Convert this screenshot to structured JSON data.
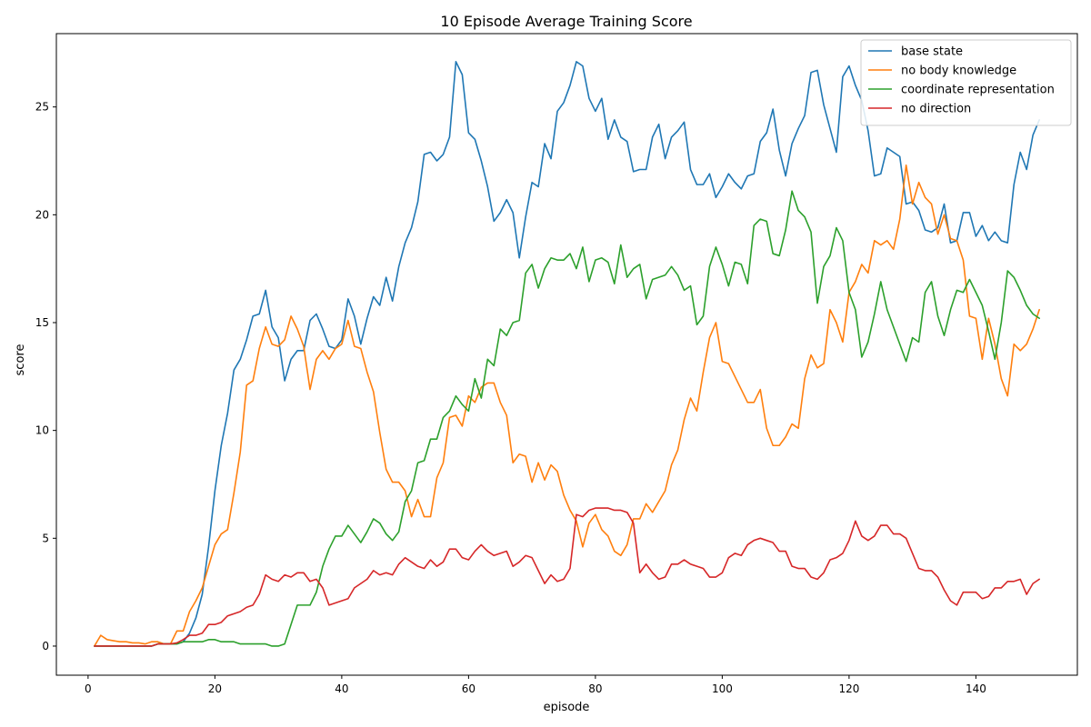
{
  "chart_data": {
    "type": "line",
    "title": "10 Episode Average Training Score",
    "xlabel": "episode",
    "ylabel": "score",
    "xlim": [
      -5,
      156
    ],
    "ylim": [
      -1.35,
      28.4
    ],
    "xticks": [
      0,
      20,
      40,
      60,
      80,
      100,
      120,
      140
    ],
    "yticks": [
      0,
      5,
      10,
      15,
      20,
      25
    ],
    "grid": false,
    "legend_position": "top-right",
    "x": [
      1,
      2,
      3,
      4,
      5,
      6,
      7,
      8,
      9,
      10,
      11,
      12,
      13,
      14,
      15,
      16,
      17,
      18,
      19,
      20,
      21,
      22,
      23,
      24,
      25,
      26,
      27,
      28,
      29,
      30,
      31,
      32,
      33,
      34,
      35,
      36,
      37,
      38,
      39,
      40,
      41,
      42,
      43,
      44,
      45,
      46,
      47,
      48,
      49,
      50,
      51,
      52,
      53,
      54,
      55,
      56,
      57,
      58,
      59,
      60,
      61,
      62,
      63,
      64,
      65,
      66,
      67,
      68,
      69,
      70,
      71,
      72,
      73,
      74,
      75,
      76,
      77,
      78,
      79,
      80,
      81,
      82,
      83,
      84,
      85,
      86,
      87,
      88,
      89,
      90,
      91,
      92,
      93,
      94,
      95,
      96,
      97,
      98,
      99,
      100,
      101,
      102,
      103,
      104,
      105,
      106,
      107,
      108,
      109,
      110,
      111,
      112,
      113,
      114,
      115,
      116,
      117,
      118,
      119,
      120,
      121,
      122,
      123,
      124,
      125,
      126,
      127,
      128,
      129,
      130,
      131,
      132,
      133,
      134,
      135,
      136,
      137,
      138,
      139,
      140,
      141,
      142,
      143,
      144,
      145,
      146,
      147,
      148,
      149,
      150
    ],
    "series": [
      {
        "name": "base state",
        "color": "#1f77b4",
        "values": [
          0,
          0,
          0,
          0,
          0,
          0,
          0,
          0,
          0,
          0,
          0.1,
          0.1,
          0.1,
          0.1,
          0.2,
          0.6,
          1.3,
          2.4,
          4.6,
          7.2,
          9.3,
          10.8,
          12.8,
          13.3,
          14.2,
          15.3,
          15.4,
          16.5,
          14.8,
          14.3,
          12.3,
          13.3,
          13.7,
          13.7,
          15.1,
          15.4,
          14.7,
          13.9,
          13.8,
          14.2,
          16.1,
          15.3,
          14.0,
          15.2,
          16.2,
          15.8,
          17.1,
          16.0,
          17.6,
          18.7,
          19.4,
          20.6,
          22.8,
          22.9,
          22.5,
          22.8,
          23.6,
          27.1,
          26.5,
          23.8,
          23.5,
          22.5,
          21.3,
          19.7,
          20.1,
          20.7,
          20.1,
          18.0,
          19.9,
          21.5,
          21.3,
          23.3,
          22.6,
          24.8,
          25.2,
          26.0,
          27.1,
          26.9,
          25.4,
          24.8,
          25.4,
          23.5,
          24.4,
          23.6,
          23.4,
          22.0,
          22.1,
          22.1,
          23.6,
          24.2,
          22.6,
          23.6,
          23.9,
          24.3,
          22.1,
          21.4,
          21.4,
          21.9,
          20.8,
          21.3,
          21.9,
          21.5,
          21.2,
          21.8,
          21.9,
          23.4,
          23.8,
          24.9,
          23.0,
          21.8,
          23.3,
          24.0,
          24.6,
          26.6,
          26.7,
          25.1,
          24.0,
          22.9,
          26.4,
          26.9,
          26.0,
          25.3,
          23.9,
          21.8,
          21.9,
          23.1,
          22.9,
          22.7,
          20.5,
          20.6,
          20.2,
          19.3,
          19.2,
          19.4,
          20.5,
          18.7,
          18.8,
          20.1,
          20.1,
          19.0,
          19.5,
          18.8,
          19.2,
          18.8,
          18.7,
          21.4,
          22.9,
          22.1,
          23.7,
          24.4
        ]
      },
      {
        "name": "no body knowledge",
        "color": "#ff7f0e",
        "values": [
          0,
          0.5,
          0.3,
          0.25,
          0.2,
          0.2,
          0.15,
          0.15,
          0.1,
          0.2,
          0.2,
          0.1,
          0.1,
          0.7,
          0.7,
          1.6,
          2.1,
          2.7,
          3.7,
          4.7,
          5.2,
          5.4,
          7.1,
          9.0,
          12.1,
          12.3,
          13.8,
          14.8,
          14.0,
          13.9,
          14.2,
          15.3,
          14.7,
          13.9,
          11.9,
          13.3,
          13.7,
          13.3,
          13.8,
          14.0,
          15.1,
          13.9,
          13.8,
          12.7,
          11.8,
          9.9,
          8.2,
          7.6,
          7.6,
          7.2,
          6.0,
          6.8,
          6.0,
          6.0,
          7.8,
          8.5,
          10.6,
          10.7,
          10.2,
          11.6,
          11.3,
          12.0,
          12.2,
          12.2,
          11.3,
          10.7,
          8.5,
          8.9,
          8.8,
          7.6,
          8.5,
          7.7,
          8.4,
          8.1,
          7.0,
          6.3,
          5.8,
          4.6,
          5.7,
          6.1,
          5.4,
          5.1,
          4.4,
          4.2,
          4.7,
          5.9,
          5.9,
          6.6,
          6.2,
          6.7,
          7.2,
          8.4,
          9.1,
          10.5,
          11.5,
          10.9,
          12.7,
          14.3,
          15.0,
          13.2,
          13.1,
          12.5,
          11.9,
          11.3,
          11.3,
          11.9,
          10.1,
          9.3,
          9.3,
          9.7,
          10.3,
          10.1,
          12.4,
          13.5,
          12.9,
          13.1,
          15.6,
          15.0,
          14.1,
          16.4,
          16.9,
          17.7,
          17.3,
          18.8,
          18.6,
          18.8,
          18.4,
          19.8,
          22.3,
          20.5,
          21.5,
          20.8,
          20.5,
          19.1,
          20.0,
          18.9,
          18.8,
          17.9,
          15.3,
          15.2,
          13.3,
          15.2,
          14.0,
          12.4,
          11.6,
          14.0,
          13.7,
          14.0,
          14.7,
          15.6
        ]
      },
      {
        "name": "coordinate representation",
        "color": "#2ca02c",
        "values": [
          0,
          0,
          0,
          0,
          0,
          0,
          0,
          0,
          0,
          0,
          0.1,
          0.1,
          0.1,
          0.1,
          0.2,
          0.2,
          0.2,
          0.2,
          0.3,
          0.3,
          0.2,
          0.2,
          0.2,
          0.1,
          0.1,
          0.1,
          0.1,
          0.1,
          0,
          0,
          0.1,
          1.0,
          1.9,
          1.9,
          1.9,
          2.5,
          3.7,
          4.5,
          5.1,
          5.1,
          5.6,
          5.2,
          4.8,
          5.3,
          5.9,
          5.7,
          5.2,
          4.9,
          5.3,
          6.7,
          7.2,
          8.5,
          8.6,
          9.6,
          9.6,
          10.6,
          10.9,
          11.6,
          11.2,
          10.9,
          12.4,
          11.5,
          13.3,
          13.0,
          14.7,
          14.4,
          15.0,
          15.1,
          17.3,
          17.7,
          16.6,
          17.5,
          18.0,
          17.9,
          17.9,
          18.2,
          17.5,
          18.5,
          16.9,
          17.9,
          18.0,
          17.8,
          16.8,
          18.6,
          17.1,
          17.5,
          17.7,
          16.1,
          17.0,
          17.1,
          17.2,
          17.6,
          17.2,
          16.5,
          16.7,
          14.9,
          15.3,
          17.6,
          18.5,
          17.7,
          16.7,
          17.8,
          17.7,
          16.8,
          19.5,
          19.8,
          19.7,
          18.2,
          18.1,
          19.3,
          21.1,
          20.2,
          19.9,
          19.2,
          15.9,
          17.6,
          18.1,
          19.4,
          18.8,
          16.4,
          15.6,
          13.4,
          14.1,
          15.4,
          16.9,
          15.6,
          14.8,
          14.0,
          13.2,
          14.3,
          14.1,
          16.4,
          16.9,
          15.3,
          14.4,
          15.6,
          16.5,
          16.4,
          17.0,
          16.4,
          15.8,
          14.6,
          13.3,
          15.0,
          17.4,
          17.1,
          16.5,
          15.8,
          15.4,
          15.2
        ]
      },
      {
        "name": "no direction",
        "color": "#d62728",
        "values": [
          0,
          0,
          0,
          0,
          0,
          0,
          0,
          0,
          0,
          0,
          0.1,
          0.1,
          0.1,
          0.15,
          0.3,
          0.5,
          0.5,
          0.6,
          1.0,
          1.0,
          1.1,
          1.4,
          1.5,
          1.6,
          1.8,
          1.9,
          2.4,
          3.3,
          3.1,
          3.0,
          3.3,
          3.2,
          3.4,
          3.4,
          3.0,
          3.1,
          2.7,
          1.9,
          2.0,
          2.1,
          2.2,
          2.7,
          2.9,
          3.1,
          3.5,
          3.3,
          3.4,
          3.3,
          3.8,
          4.1,
          3.9,
          3.7,
          3.6,
          4.0,
          3.7,
          3.9,
          4.5,
          4.5,
          4.1,
          4.0,
          4.4,
          4.7,
          4.4,
          4.2,
          4.3,
          4.4,
          3.7,
          3.9,
          4.2,
          4.1,
          3.5,
          2.9,
          3.3,
          3.0,
          3.1,
          3.6,
          6.1,
          6.0,
          6.3,
          6.4,
          6.4,
          6.4,
          6.3,
          6.3,
          6.2,
          5.7,
          3.4,
          3.8,
          3.4,
          3.1,
          3.2,
          3.8,
          3.8,
          4.0,
          3.8,
          3.7,
          3.6,
          3.2,
          3.2,
          3.4,
          4.1,
          4.3,
          4.2,
          4.7,
          4.9,
          5.0,
          4.9,
          4.8,
          4.4,
          4.4,
          3.7,
          3.6,
          3.6,
          3.2,
          3.1,
          3.4,
          4.0,
          4.1,
          4.3,
          4.9,
          5.8,
          5.1,
          4.9,
          5.1,
          5.6,
          5.6,
          5.2,
          5.2,
          5.0,
          4.3,
          3.6,
          3.5,
          3.5,
          3.2,
          2.6,
          2.1,
          1.9,
          2.5,
          2.5,
          2.5,
          2.2,
          2.3,
          2.7,
          2.7,
          3.0,
          3.0,
          3.1,
          2.4,
          2.9,
          3.1
        ]
      }
    ]
  }
}
